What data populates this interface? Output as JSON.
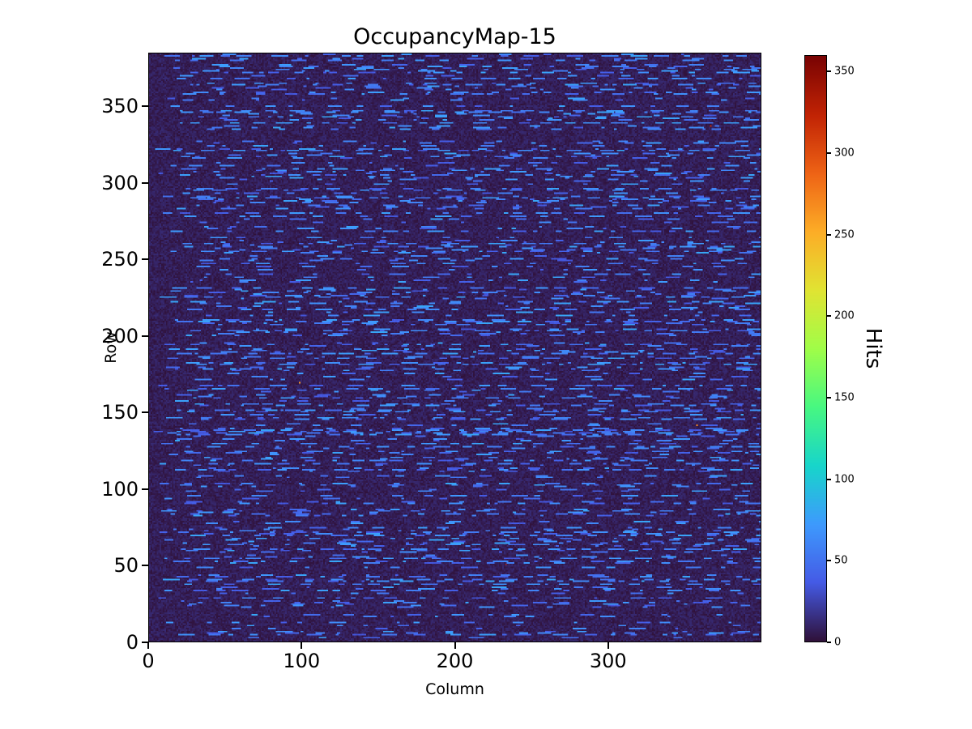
{
  "chart_data": {
    "type": "heatmap",
    "title": "OccupancyMap-15",
    "xlabel": "Column",
    "ylabel": "Row",
    "colorbar_label": "Hits",
    "x_range": [
      0,
      400
    ],
    "y_range": [
      0,
      385
    ],
    "x_ticks": [
      0,
      100,
      200,
      300
    ],
    "y_ticks": [
      0,
      50,
      100,
      150,
      200,
      250,
      300,
      350
    ],
    "colorbar_ticks": [
      0,
      50,
      100,
      150,
      200,
      250,
      300,
      350
    ],
    "value_range": [
      0,
      360
    ],
    "grid": false,
    "legend_position": "right-colorbar",
    "colormap": "turbo",
    "colormap_stops": [
      {
        "t": 0.0,
        "color": "#30123b"
      },
      {
        "t": 0.1,
        "color": "#455be6"
      },
      {
        "t": 0.2,
        "color": "#3e9bfe"
      },
      {
        "t": 0.3,
        "color": "#18d6cb"
      },
      {
        "t": 0.4,
        "color": "#48f882"
      },
      {
        "t": 0.5,
        "color": "#a1fe49"
      },
      {
        "t": 0.6,
        "color": "#e1e433"
      },
      {
        "t": 0.7,
        "color": "#fdae27"
      },
      {
        "t": 0.8,
        "color": "#ef6416"
      },
      {
        "t": 0.9,
        "color": "#c22405"
      },
      {
        "t": 1.0,
        "color": "#7a0403"
      }
    ],
    "heatmap": {
      "cols": 400,
      "rows": 385,
      "seed": 15,
      "background_value_range": [
        0,
        12
      ],
      "streak_rows_fraction": 0.6,
      "dash_length_range": [
        2,
        11
      ],
      "dash_gap_range": [
        3,
        38
      ],
      "dash_value_range": [
        30,
        75
      ],
      "hot_pixel_count": 4,
      "hot_pixel_value_range": [
        250,
        360
      ]
    }
  }
}
